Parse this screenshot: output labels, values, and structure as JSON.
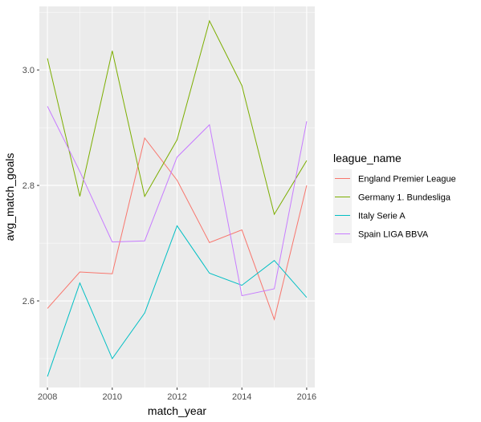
{
  "chart_data": {
    "type": "line",
    "xlabel": "match_year",
    "ylabel": "avg_match_goals",
    "x": [
      2008,
      2009,
      2010,
      2011,
      2012,
      2013,
      2014,
      2015,
      2016
    ],
    "xlim": [
      2007.75,
      2016.25
    ],
    "ylim": [
      2.45,
      3.11
    ],
    "x_ticks": [
      2008,
      2010,
      2012,
      2014,
      2016
    ],
    "y_ticks": [
      2.6,
      2.8,
      3.0
    ],
    "x_tick_labels": [
      "2008",
      "2010",
      "2012",
      "2014",
      "2016"
    ],
    "y_tick_labels": [
      "2.6",
      "2.8",
      "3.0"
    ],
    "grid": true,
    "legend": {
      "title": "league_name",
      "position": "right"
    },
    "series": [
      {
        "name": "England Premier League",
        "color": "#F8766D",
        "values": [
          2.587,
          2.65,
          2.647,
          2.882,
          2.809,
          2.701,
          2.723,
          2.568,
          2.8
        ]
      },
      {
        "name": "Germany 1. Bundesliga",
        "color": "#7CAE00",
        "values": [
          3.02,
          2.781,
          3.033,
          2.781,
          2.879,
          3.085,
          2.973,
          2.75,
          2.843
        ]
      },
      {
        "name": "Italy Serie A",
        "color": "#00BFC4",
        "values": [
          2.469,
          2.631,
          2.5,
          2.579,
          2.73,
          2.648,
          2.627,
          2.67,
          2.606
        ]
      },
      {
        "name": "Spain LIGA BBVA",
        "color": "#C77CFF",
        "values": [
          2.937,
          2.824,
          2.702,
          2.704,
          2.849,
          2.905,
          2.609,
          2.621,
          2.911
        ]
      }
    ]
  }
}
